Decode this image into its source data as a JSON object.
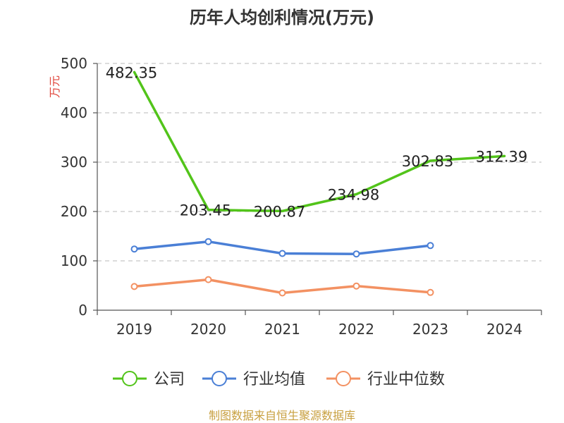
{
  "chart_data": {
    "type": "line",
    "title": "历年人均创利情况(万元)",
    "ylabel": "万元",
    "categories": [
      "2019",
      "2020",
      "2021",
      "2022",
      "2023",
      "2024"
    ],
    "ylim": [
      0,
      500
    ],
    "yticks": [
      0,
      100,
      200,
      300,
      400,
      500
    ],
    "grid": true,
    "legend_position": "bottom",
    "series": [
      {
        "name": "公司",
        "color": "#52c41a",
        "values": [
          482.35,
          203.45,
          200.87,
          234.98,
          302.83,
          312.39
        ],
        "show_labels": true
      },
      {
        "name": "行业均值",
        "color": "#4a7fd6",
        "values": [
          124,
          139,
          115,
          114,
          131,
          null
        ],
        "show_labels": false
      },
      {
        "name": "行业中位数",
        "color": "#f39162",
        "values": [
          48,
          62,
          35,
          49,
          36,
          null
        ],
        "show_labels": false
      }
    ]
  },
  "footer": {
    "source": "制图数据来自恒生聚源数据库"
  }
}
